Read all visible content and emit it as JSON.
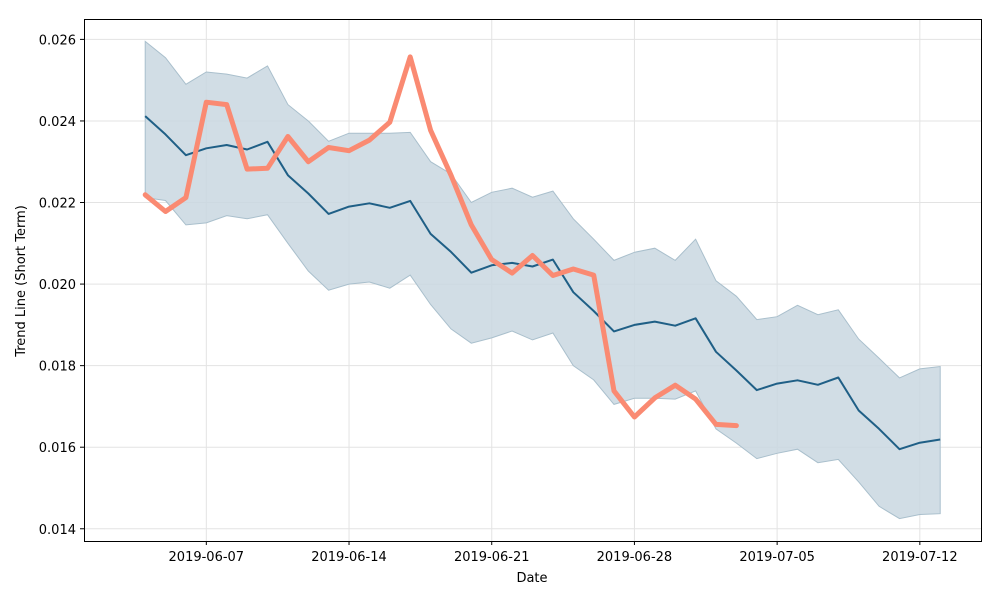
{
  "chart_data": {
    "type": "line",
    "xlabel": "Date",
    "ylabel": "Trend Line (Short Term)",
    "x_start": "2019-06-04",
    "x_axis": {
      "type": "date",
      "range": [
        "2019-06-01",
        "2019-07-15"
      ],
      "ticks": [
        "2019-06-07",
        "2019-06-14",
        "2019-06-21",
        "2019-06-28",
        "2019-07-05",
        "2019-07-12"
      ]
    },
    "ylim": [
      0.0137,
      0.0265
    ],
    "yticks": [
      "0.014",
      "0.016",
      "0.018",
      "0.020",
      "0.022",
      "0.024",
      "0.026"
    ],
    "yticks_values": [
      0.014,
      0.016,
      0.018,
      0.02,
      0.022,
      0.024,
      0.026
    ],
    "grid": true,
    "colors": {
      "band": "#c9d7e0",
      "band_edge": "#a9bfcc",
      "trend": "#1f5f86",
      "actual": "#fa8a72"
    },
    "series": [
      {
        "role": "band",
        "upper": [
          0.02595,
          0.02555,
          0.0249,
          0.0252,
          0.02515,
          0.02505,
          0.02535,
          0.0244,
          0.024,
          0.0235,
          0.0237,
          0.0237,
          0.0237,
          0.02372,
          0.023,
          0.0227,
          0.022,
          0.02225,
          0.02235,
          0.02213,
          0.02228,
          0.0216,
          0.0211,
          0.02058,
          0.02078,
          0.02088,
          0.02058,
          0.0211,
          0.02008,
          0.0197,
          0.01913,
          0.0192,
          0.01948,
          0.01925,
          0.01937,
          0.01865,
          0.01818,
          0.0177,
          0.01792,
          0.01798
        ],
        "lower": [
          0.02212,
          0.02205,
          0.02145,
          0.0215,
          0.02168,
          0.0216,
          0.0217,
          0.021,
          0.02032,
          0.01985,
          0.02,
          0.02005,
          0.0199,
          0.02022,
          0.0195,
          0.0189,
          0.01855,
          0.01868,
          0.01885,
          0.01863,
          0.0188,
          0.018,
          0.01765,
          0.01705,
          0.0172,
          0.0172,
          0.01718,
          0.01738,
          0.01645,
          0.0161,
          0.01572,
          0.01585,
          0.01595,
          0.01562,
          0.0157,
          0.01515,
          0.01455,
          0.01425,
          0.01435,
          0.01437
        ]
      },
      {
        "role": "trend",
        "values": [
          0.02412,
          0.02367,
          0.02316,
          0.02333,
          0.02341,
          0.0233,
          0.02349,
          0.02267,
          0.02222,
          0.02172,
          0.0219,
          0.02198,
          0.02187,
          0.02204,
          0.02123,
          0.02079,
          0.02028,
          0.02046,
          0.02052,
          0.02043,
          0.0206,
          0.0198,
          0.01934,
          0.01884,
          0.019,
          0.01908,
          0.01898,
          0.01916,
          0.01834,
          0.01788,
          0.0174,
          0.01756,
          0.01764,
          0.01753,
          0.01771,
          0.0169,
          0.01645,
          0.01595,
          0.01611,
          0.01619
        ]
      },
      {
        "role": "actual",
        "values": [
          0.02219,
          0.02178,
          0.02212,
          0.02446,
          0.0244,
          0.02282,
          0.02284,
          0.02362,
          0.023,
          0.02335,
          0.02327,
          0.02353,
          0.02397,
          0.02557,
          0.02377,
          0.02267,
          0.02145,
          0.0206,
          0.02027,
          0.0207,
          0.02021,
          0.02037,
          0.02022,
          0.01738,
          0.01674,
          0.01721,
          0.01752,
          0.01718,
          0.01656,
          0.01653
        ]
      }
    ]
  }
}
